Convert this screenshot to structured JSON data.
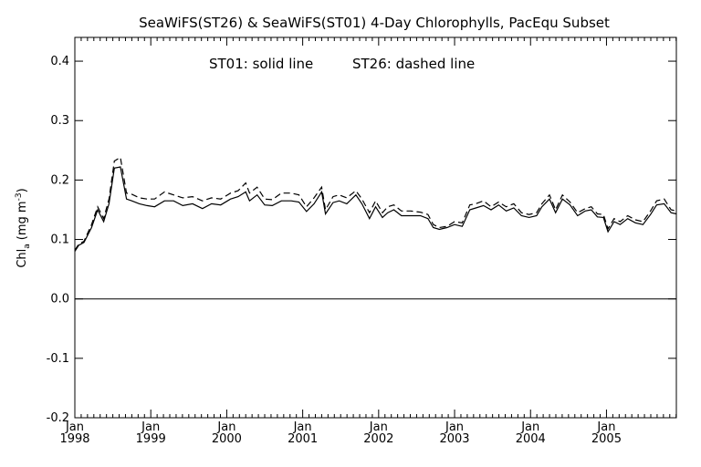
{
  "chart_data": {
    "type": "line",
    "title": "SeaWiFS(ST26) & SeaWiFS(ST01) 4-Day Chlorophylls, PacEqu Subset",
    "annotation": {
      "st01": "ST01: solid line",
      "st26": "ST26: dashed line"
    },
    "ylabel": {
      "main": "Chl",
      "sub": "a",
      "open": "(mg m",
      "sup": "-3",
      "close": ")"
    },
    "xlabel": "",
    "ylim": [
      -0.2,
      0.44
    ],
    "xlim": [
      1998.0,
      2005.92
    ],
    "yticks": [
      -0.2,
      -0.1,
      0.0,
      0.1,
      0.2,
      0.3,
      0.4
    ],
    "ytick_labels": [
      "-0.2",
      "-0.1",
      "0.0",
      "0.1",
      "0.2",
      "0.3",
      "0.4"
    ],
    "xticks": [
      {
        "x": 1998,
        "month": "Jan",
        "year": "1998"
      },
      {
        "x": 1999,
        "month": "Jan",
        "year": "1999"
      },
      {
        "x": 2000,
        "month": "Jan",
        "year": "2000"
      },
      {
        "x": 2001,
        "month": "Jan",
        "year": "2001"
      },
      {
        "x": 2002,
        "month": "Jan",
        "year": "2002"
      },
      {
        "x": 2003,
        "month": "Jan",
        "year": "2003"
      },
      {
        "x": 2004,
        "month": "Jan",
        "year": "2004"
      },
      {
        "x": 2005,
        "month": "Jan",
        "year": "2005"
      }
    ],
    "reference_line": 0.0,
    "grid": false,
    "series": [
      {
        "name": "ST01",
        "style": "solid",
        "x": [
          1998.0,
          1998.05,
          1998.12,
          1998.22,
          1998.3,
          1998.38,
          1998.45,
          1998.52,
          1998.6,
          1998.68,
          1998.75,
          1998.85,
          1998.95,
          1999.05,
          1999.18,
          1999.3,
          1999.42,
          1999.55,
          1999.68,
          1999.8,
          1999.92,
          2000.05,
          2000.15,
          2000.25,
          2000.3,
          2000.4,
          2000.5,
          2000.6,
          2000.72,
          2000.85,
          2000.95,
          2001.05,
          2001.15,
          2001.25,
          2001.3,
          2001.4,
          2001.48,
          2001.58,
          2001.7,
          2001.78,
          2001.88,
          2001.96,
          2002.05,
          2002.12,
          2002.2,
          2002.3,
          2002.42,
          2002.55,
          2002.65,
          2002.72,
          2002.8,
          2002.9,
          2003.0,
          2003.1,
          2003.2,
          2003.28,
          2003.38,
          2003.48,
          2003.58,
          2003.68,
          2003.78,
          2003.88,
          2003.98,
          2004.08,
          2004.15,
          2004.25,
          2004.33,
          2004.42,
          2004.52,
          2004.62,
          2004.72,
          2004.8,
          2004.88,
          2004.96,
          2005.02,
          2005.1,
          2005.18,
          2005.28,
          2005.38,
          2005.48,
          2005.58,
          2005.66,
          2005.76,
          2005.85,
          2005.92
        ],
        "y": [
          0.08,
          0.09,
          0.095,
          0.12,
          0.15,
          0.13,
          0.16,
          0.22,
          0.222,
          0.168,
          0.165,
          0.16,
          0.157,
          0.155,
          0.165,
          0.165,
          0.157,
          0.16,
          0.152,
          0.16,
          0.158,
          0.168,
          0.172,
          0.18,
          0.165,
          0.175,
          0.158,
          0.157,
          0.165,
          0.165,
          0.163,
          0.147,
          0.16,
          0.18,
          0.143,
          0.162,
          0.165,
          0.16,
          0.175,
          0.16,
          0.135,
          0.155,
          0.137,
          0.145,
          0.15,
          0.14,
          0.14,
          0.14,
          0.135,
          0.12,
          0.117,
          0.12,
          0.125,
          0.122,
          0.15,
          0.153,
          0.157,
          0.15,
          0.158,
          0.148,
          0.153,
          0.14,
          0.137,
          0.14,
          0.155,
          0.168,
          0.145,
          0.168,
          0.158,
          0.14,
          0.148,
          0.15,
          0.138,
          0.137,
          0.113,
          0.13,
          0.125,
          0.135,
          0.128,
          0.125,
          0.142,
          0.158,
          0.16,
          0.145,
          0.143
        ]
      },
      {
        "name": "ST26",
        "style": "dashed",
        "x": [
          1998.0,
          1998.05,
          1998.12,
          1998.22,
          1998.3,
          1998.38,
          1998.45,
          1998.52,
          1998.6,
          1998.68,
          1998.75,
          1998.85,
          1998.95,
          1999.05,
          1999.18,
          1999.3,
          1999.42,
          1999.55,
          1999.68,
          1999.8,
          1999.92,
          2000.05,
          2000.15,
          2000.25,
          2000.3,
          2000.4,
          2000.5,
          2000.6,
          2000.72,
          2000.85,
          2000.95,
          2001.05,
          2001.15,
          2001.25,
          2001.3,
          2001.4,
          2001.48,
          2001.58,
          2001.7,
          2001.78,
          2001.88,
          2001.96,
          2002.05,
          2002.12,
          2002.2,
          2002.3,
          2002.42,
          2002.55,
          2002.65,
          2002.72,
          2002.8,
          2002.9,
          2003.0,
          2003.1,
          2003.2,
          2003.28,
          2003.38,
          2003.48,
          2003.58,
          2003.68,
          2003.78,
          2003.88,
          2003.98,
          2004.08,
          2004.15,
          2004.25,
          2004.33,
          2004.42,
          2004.52,
          2004.62,
          2004.72,
          2004.8,
          2004.88,
          2004.96,
          2005.02,
          2005.1,
          2005.18,
          2005.28,
          2005.38,
          2005.48,
          2005.58,
          2005.66,
          2005.76,
          2005.85,
          2005.92
        ],
        "y": [
          0.082,
          0.092,
          0.097,
          0.125,
          0.155,
          0.135,
          0.168,
          0.232,
          0.238,
          0.178,
          0.176,
          0.17,
          0.168,
          0.168,
          0.18,
          0.175,
          0.17,
          0.172,
          0.165,
          0.17,
          0.168,
          0.178,
          0.182,
          0.195,
          0.178,
          0.188,
          0.168,
          0.167,
          0.178,
          0.178,
          0.175,
          0.155,
          0.17,
          0.188,
          0.15,
          0.172,
          0.175,
          0.17,
          0.182,
          0.168,
          0.145,
          0.165,
          0.145,
          0.155,
          0.158,
          0.148,
          0.148,
          0.146,
          0.142,
          0.125,
          0.12,
          0.122,
          0.13,
          0.128,
          0.158,
          0.16,
          0.165,
          0.155,
          0.163,
          0.155,
          0.16,
          0.145,
          0.142,
          0.145,
          0.16,
          0.175,
          0.15,
          0.175,
          0.163,
          0.145,
          0.152,
          0.155,
          0.143,
          0.142,
          0.118,
          0.135,
          0.13,
          0.14,
          0.133,
          0.13,
          0.148,
          0.165,
          0.168,
          0.15,
          0.148
        ]
      }
    ]
  }
}
